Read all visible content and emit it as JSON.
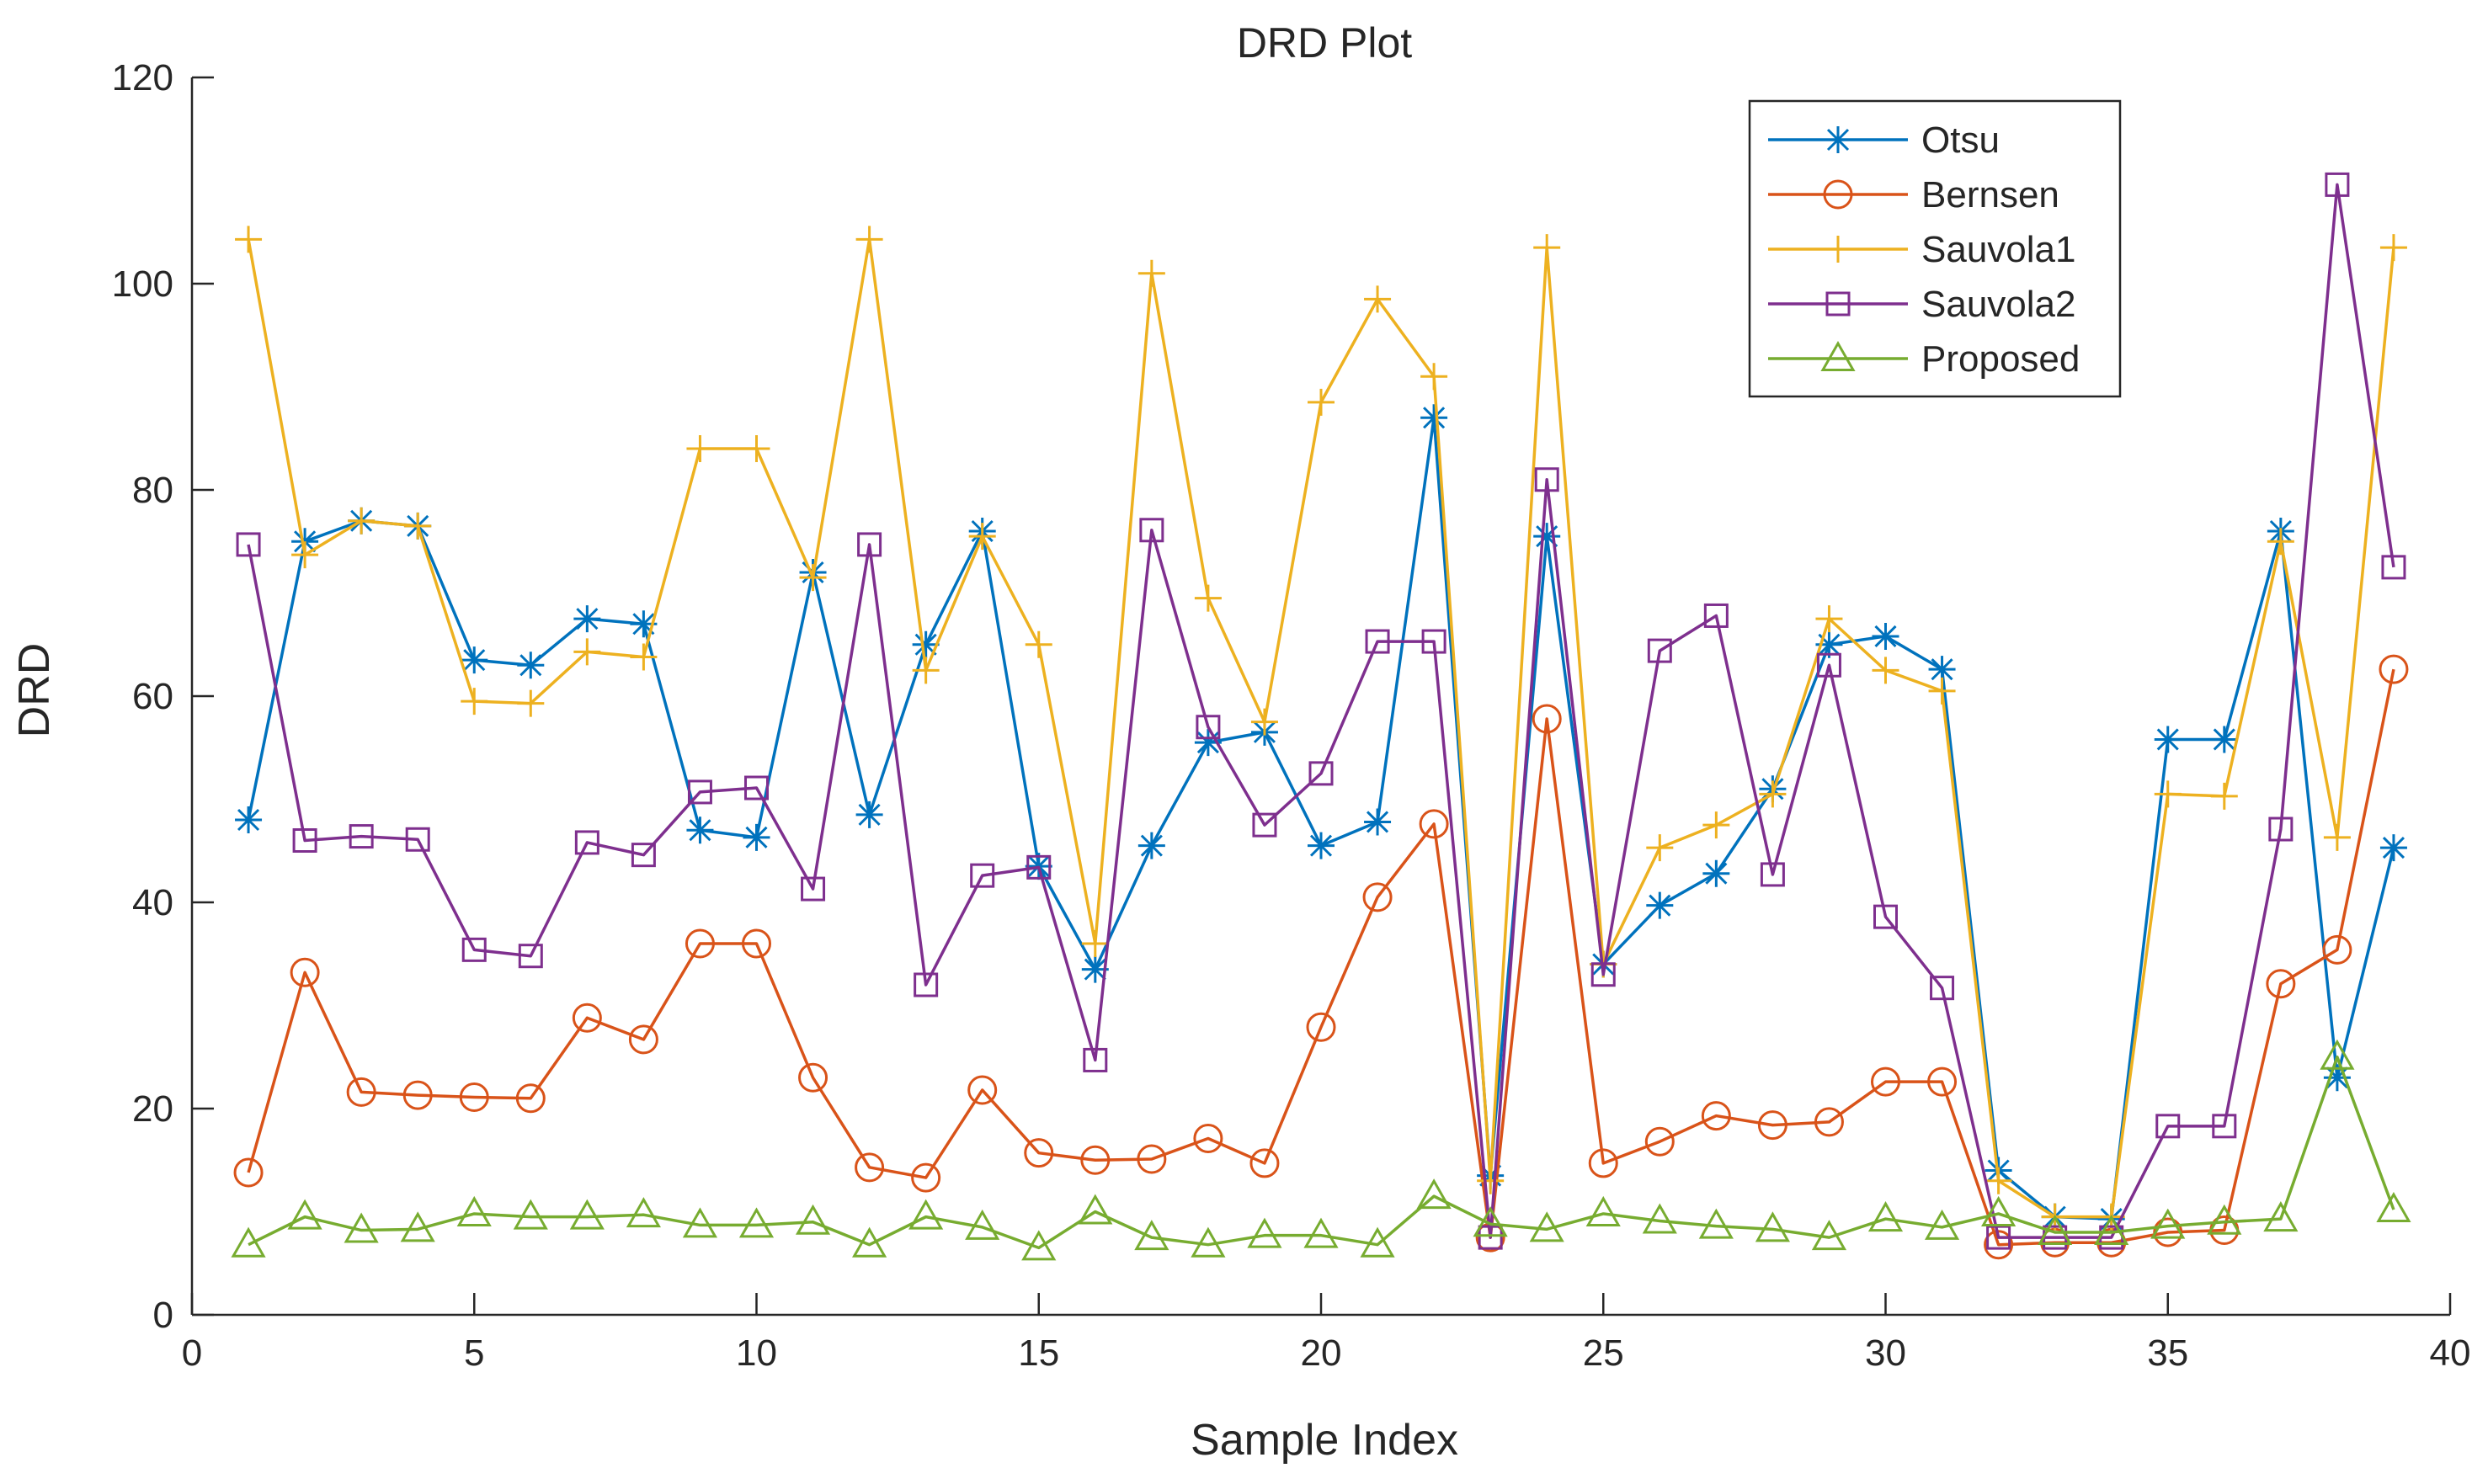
{
  "chart_data": {
    "type": "line",
    "title": "DRD Plot",
    "xlabel": "Sample Index",
    "ylabel": "DRD",
    "xlim": [
      0,
      40
    ],
    "ylim": [
      0,
      120
    ],
    "xticks": [
      0,
      5,
      10,
      15,
      20,
      25,
      30,
      35,
      40
    ],
    "yticks": [
      0,
      20,
      40,
      60,
      80,
      100,
      120
    ],
    "grid": false,
    "legend_position": "top-right",
    "x": [
      1,
      2,
      3,
      4,
      5,
      6,
      7,
      8,
      9,
      10,
      11,
      12,
      13,
      14,
      15,
      16,
      17,
      18,
      19,
      20,
      21,
      22,
      23,
      24,
      25,
      26,
      27,
      28,
      29,
      30,
      31,
      32,
      33,
      34,
      35,
      36,
      37,
      38,
      39
    ],
    "series": [
      {
        "name": "Otsu",
        "color": "#0072BD",
        "marker": "asterisk",
        "values": [
          48,
          75,
          77,
          76.5,
          63.5,
          63,
          67.5,
          67,
          47,
          46.3,
          72,
          48.5,
          65,
          76,
          43.5,
          33.5,
          45.5,
          55.5,
          56.5,
          45.5,
          47.8,
          87,
          13.5,
          75.5,
          34,
          39.7,
          42.8,
          51,
          65,
          65.8,
          62.6,
          14,
          9.5,
          9.3,
          55.8,
          55.8,
          76,
          23,
          45.3
        ]
      },
      {
        "name": "Bernsen",
        "color": "#D95319",
        "marker": "circle",
        "values": [
          13.8,
          33.2,
          21.6,
          21.3,
          21.1,
          21,
          28.8,
          26.7,
          36,
          36,
          23,
          14.3,
          13.3,
          21.8,
          15.7,
          15,
          15.1,
          17.1,
          14.7,
          27.9,
          40.5,
          47.6,
          7.5,
          57.8,
          14.7,
          16.8,
          19.3,
          18.4,
          18.7,
          22.6,
          22.6,
          6.8,
          7,
          7,
          8,
          8.2,
          32.1,
          35.4,
          62.6
        ]
      },
      {
        "name": "Sauvola1",
        "color": "#EDB120",
        "marker": "plus",
        "values": [
          104.3,
          73.7,
          77,
          76.5,
          59.5,
          59.3,
          64.3,
          63.8,
          84,
          84,
          71.5,
          104.3,
          62.5,
          75.5,
          65,
          36,
          101,
          69.5,
          57.5,
          88.5,
          98.5,
          91,
          13,
          103.5,
          34,
          45.3,
          47.5,
          50.5,
          67.5,
          62.5,
          60.5,
          13,
          9.5,
          9.5,
          50.5,
          50.3,
          75,
          46.3,
          103.5
        ]
      },
      {
        "name": "Sauvola2",
        "color": "#7E2F8E",
        "marker": "square",
        "values": [
          74.7,
          46,
          46.4,
          46.1,
          35.4,
          34.8,
          45.8,
          44.6,
          50.7,
          51.1,
          41.3,
          74.7,
          32,
          42.6,
          43.4,
          24.7,
          76.1,
          57,
          47.5,
          52.5,
          65.3,
          65.3,
          7.5,
          81,
          33,
          64.4,
          67.8,
          42.7,
          63,
          38.6,
          31.7,
          7.5,
          7.5,
          7.5,
          18.3,
          18.3,
          47.1,
          109.6,
          72.5
        ]
      },
      {
        "name": "Proposed",
        "color": "#77AC30",
        "marker": "triangle",
        "values": [
          6.8,
          9.5,
          8.2,
          8.3,
          9.8,
          9.5,
          9.5,
          9.7,
          8.7,
          8.7,
          9,
          6.8,
          9.5,
          8.5,
          6.5,
          10,
          7.5,
          6.8,
          7.7,
          7.7,
          6.8,
          11.5,
          8.8,
          8.3,
          9.8,
          9.1,
          8.6,
          8.3,
          7.5,
          9.3,
          8.5,
          9.8,
          8,
          8,
          8.6,
          9,
          9.3,
          25,
          10.2
        ]
      }
    ]
  }
}
